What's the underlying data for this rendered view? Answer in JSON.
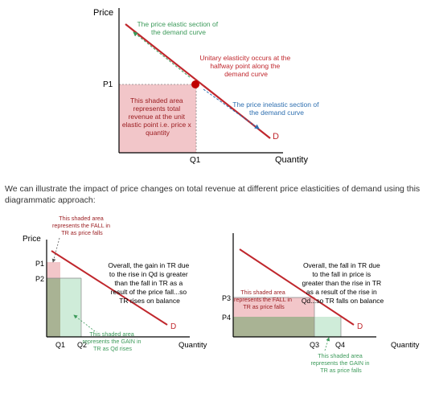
{
  "colors": {
    "axis": "#000000",
    "demand": "#c0272d",
    "dark_red_text": "#9a1b1f",
    "green_text": "#3c9a5a",
    "blue_text": "#2e6fb0",
    "red_fill": "#f2c6c9",
    "green_fill": "#cfecd9",
    "olive_fill": "#a9b394",
    "point": "#c00000"
  },
  "top": {
    "price_label": "Price",
    "quantity_label": "Quantity",
    "p1": "P1",
    "q1": "Q1",
    "d": "D",
    "elastic_note": [
      "The price elastic section of",
      "the demand curve"
    ],
    "unitary_note": [
      "Unitary elasticity occurs at the",
      "halfway point along the",
      "demand curve"
    ],
    "inelastic_note": [
      "The price inelastic section of",
      "the demand curve"
    ],
    "shaded_note": [
      "This shaded area",
      "represents total",
      "revenue at the unit",
      "elastic point i.e. price x",
      "quantity"
    ]
  },
  "paragraph": "We can illustrate the impact of price changes on total revenue at different price elasticities of demand using this diagrammatic approach:",
  "left": {
    "price_label": "Price",
    "quantity_label": "Quantity",
    "p1": "P1",
    "p2": "P2",
    "q1": "Q1",
    "q2": "Q2",
    "d": "D",
    "fall_note": [
      "This shaded area",
      "represents the FALL in",
      "TR as price falls"
    ],
    "gain_note": [
      "This shaded area",
      "represents the GAIN in",
      "TR as Qd rises"
    ],
    "overall": [
      "Overall, the gain in TR due",
      "to the rise in Qd is greater",
      "than the fall in TR as a",
      "result of the price fall...so",
      "TR rises on balance"
    ]
  },
  "right": {
    "quantity_label": "Quantity",
    "p3": "P3",
    "p4": "P4",
    "q3": "Q3",
    "q4": "Q4",
    "d": "D",
    "fall_note": [
      "This shaded area",
      "represents the FALL in",
      "TR as price falls"
    ],
    "gain_note": [
      "This shaded area",
      "represents the GAIN in",
      "TR as price falls"
    ],
    "overall": [
      "Overall, the fall in TR due",
      "to the fall in price is",
      "greater than the rise in TR",
      "as a result of the rise in",
      "Qd...so TR falls on balance"
    ]
  }
}
